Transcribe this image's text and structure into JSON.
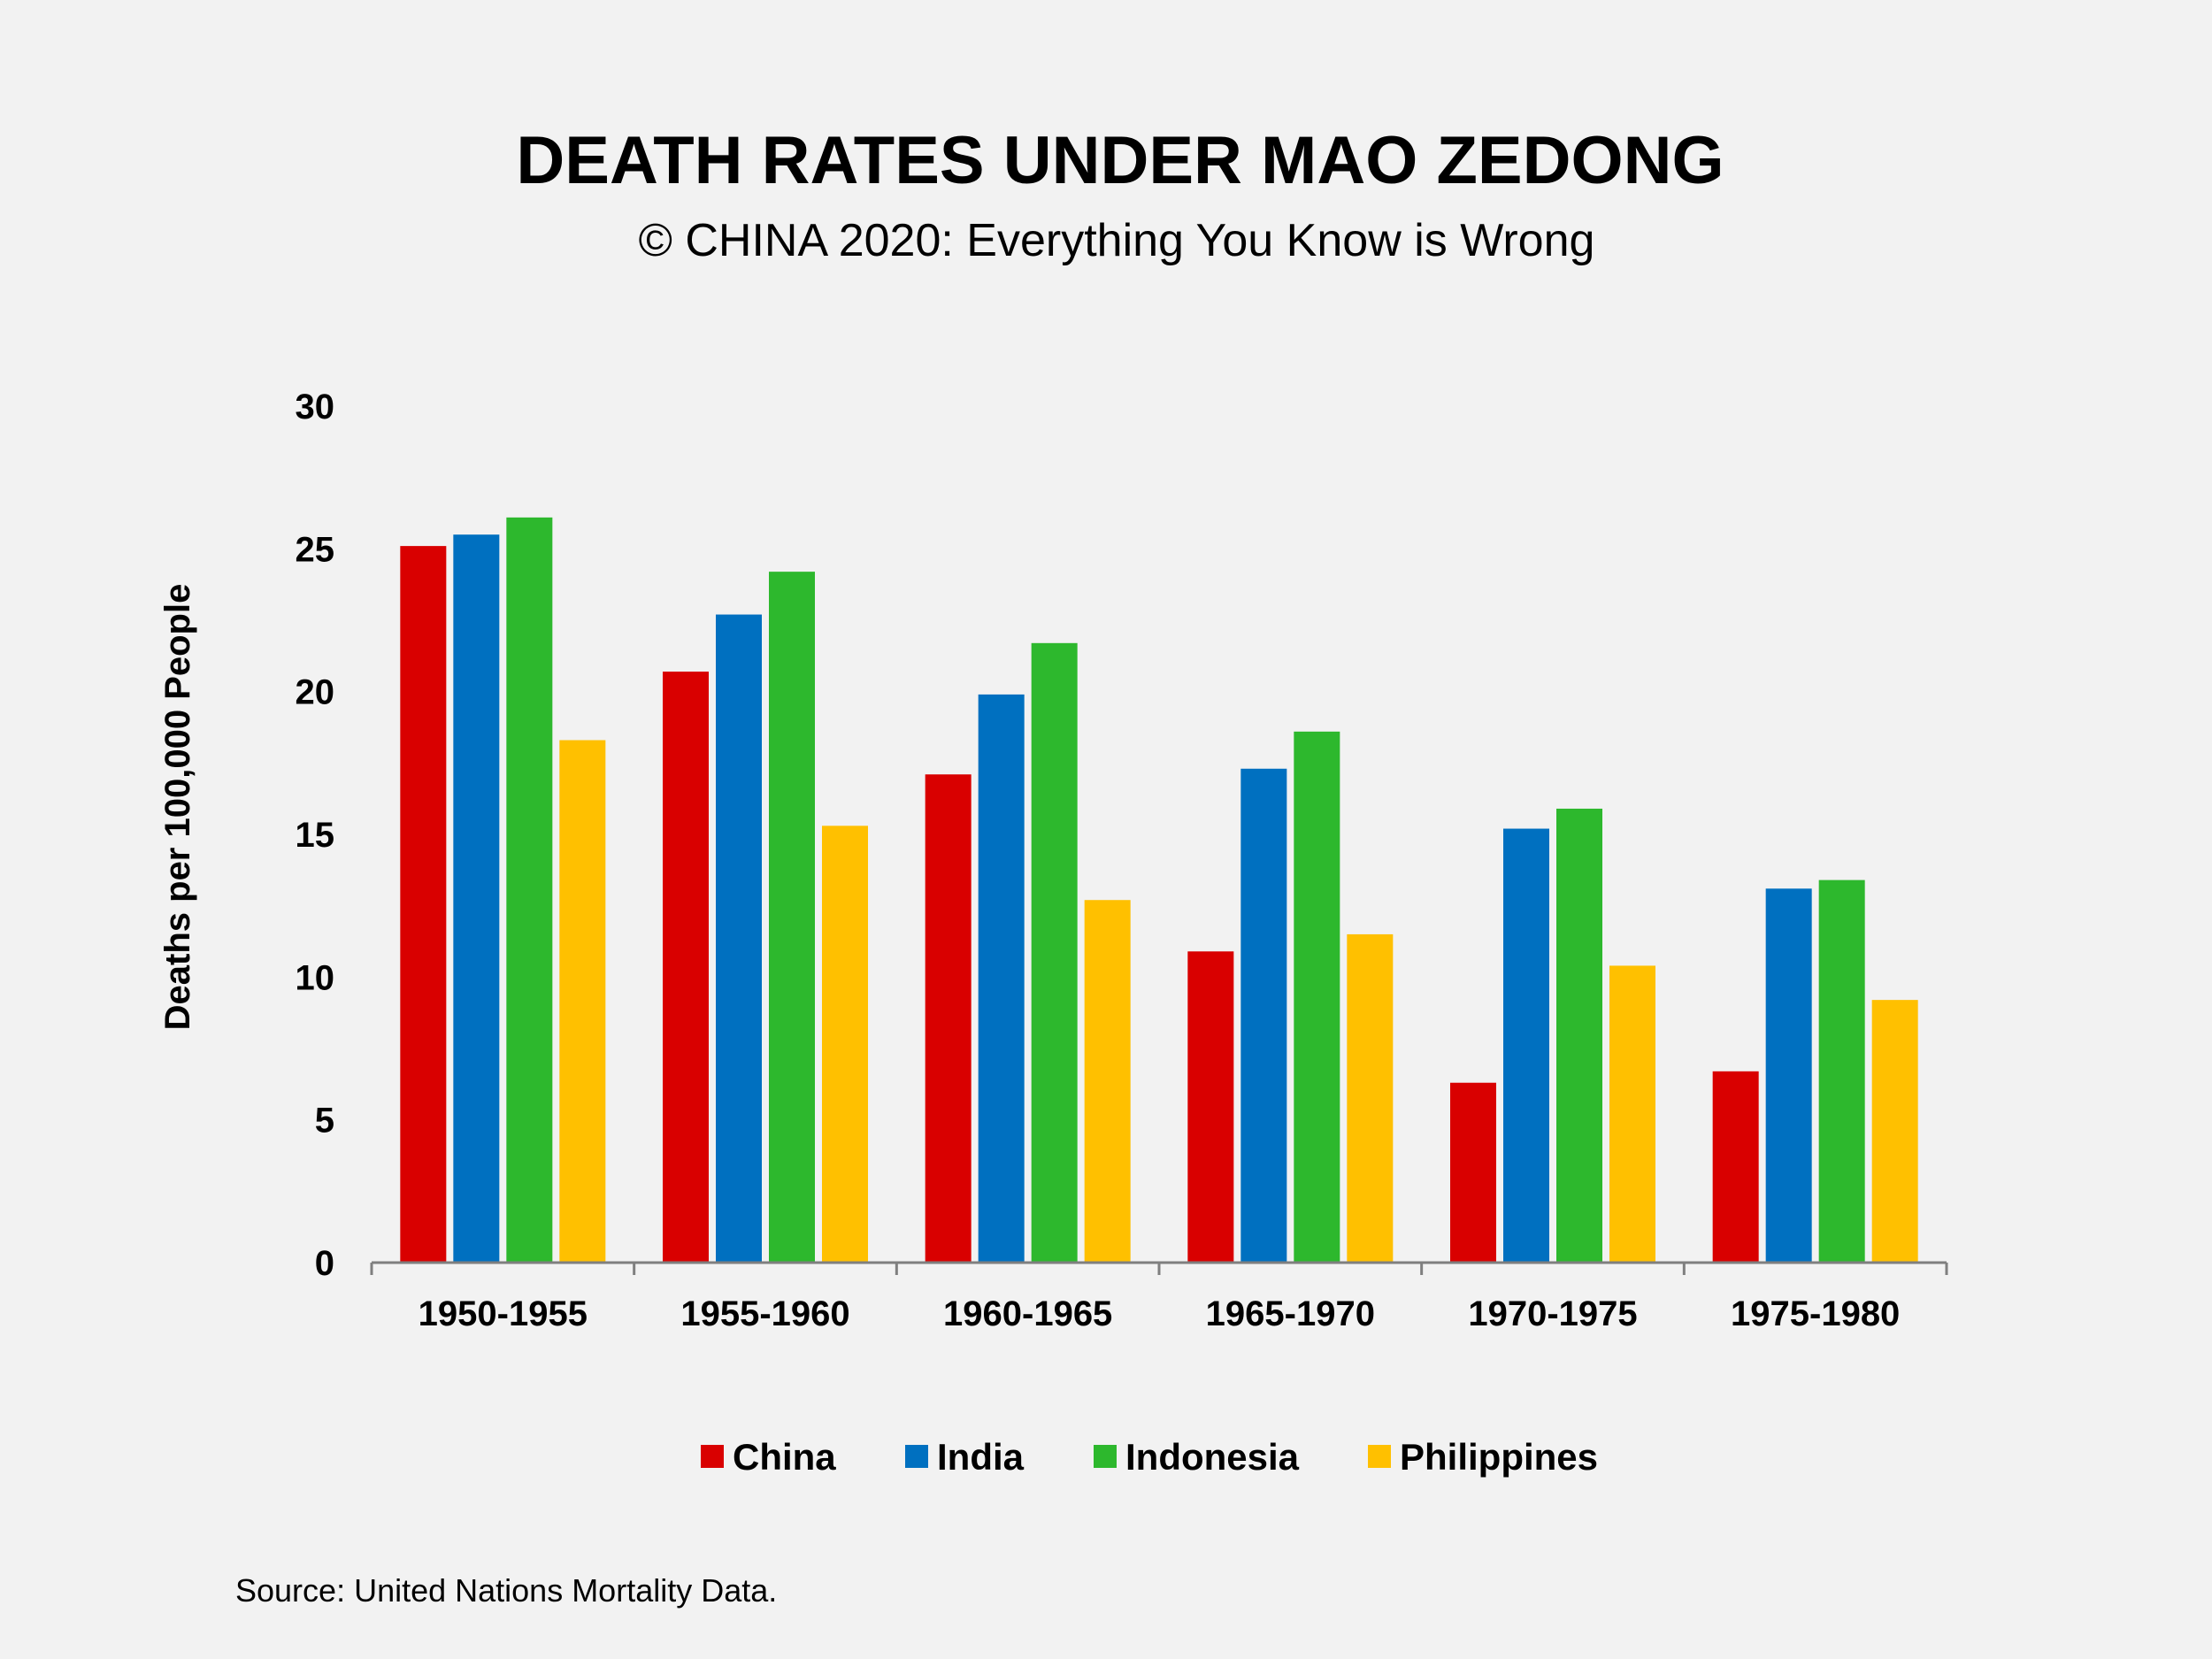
{
  "chart_data": {
    "type": "bar",
    "title": "DEATH RATES UNDER MAO ZEDONG",
    "subtitle": "© CHINA 2020: Everything You Know is Wrong",
    "xlabel": "",
    "ylabel": "Deaths per 100,000 People",
    "ylim": [
      0,
      30
    ],
    "yticks": [
      0,
      5,
      10,
      15,
      20,
      25,
      30
    ],
    "grid": false,
    "legend_position": "bottom",
    "categories": [
      "1950-1955",
      "1955-1960",
      "1960-1965",
      "1965-1970",
      "1970-1975",
      "1975-1980"
    ],
    "series": [
      {
        "name": "China",
        "color": "#d90000",
        "values": [
          25.1,
          20.7,
          17.1,
          10.9,
          6.3,
          6.7
        ]
      },
      {
        "name": "India",
        "color": "#0070c0",
        "values": [
          25.5,
          22.7,
          19.9,
          17.3,
          15.2,
          13.1
        ]
      },
      {
        "name": "Indonesia",
        "color": "#2db82d",
        "values": [
          26.1,
          24.2,
          21.7,
          18.6,
          15.9,
          13.4
        ]
      },
      {
        "name": "Philippines",
        "color": "#ffc000",
        "values": [
          18.3,
          15.3,
          12.7,
          11.5,
          10.4,
          9.2
        ]
      }
    ],
    "source": "Source: United Nations Mortality Data."
  }
}
